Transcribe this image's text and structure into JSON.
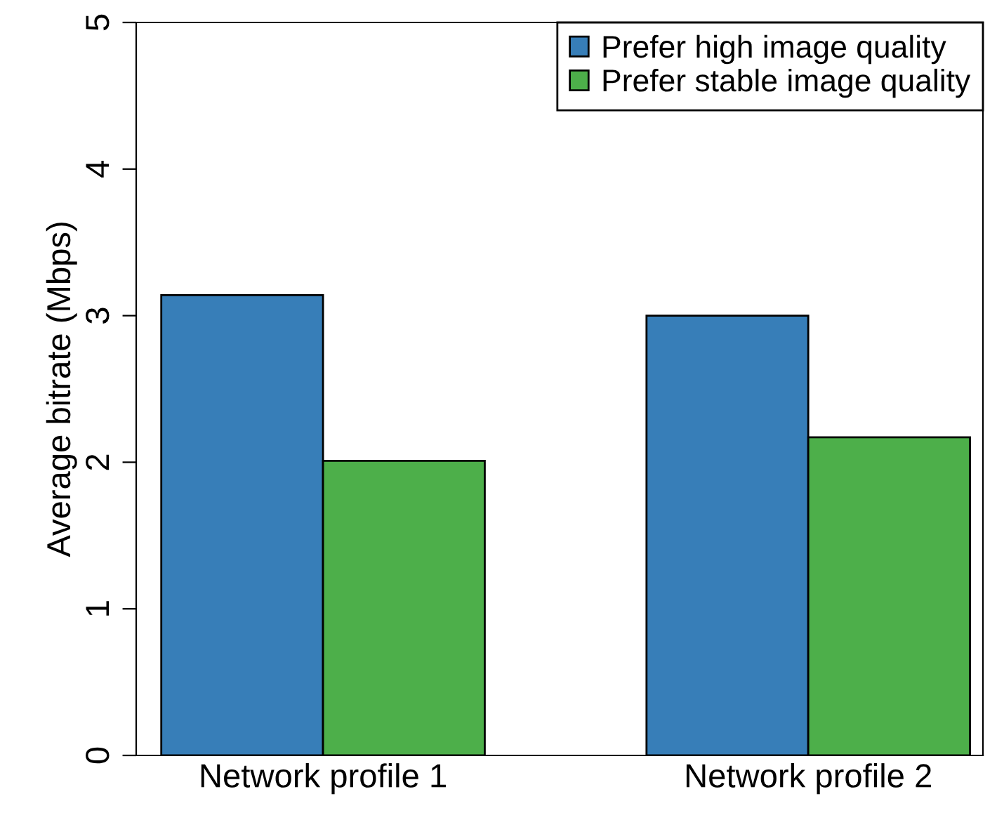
{
  "chart_data": {
    "type": "bar",
    "ylabel": "Average bitrate (Mbps)",
    "categories": [
      "Network profile 1",
      "Network profile 2"
    ],
    "series": [
      {
        "name": "Prefer high image quality",
        "color": "#377eb8",
        "values": [
          3.14,
          3.0
        ]
      },
      {
        "name": "Prefer stable image quality",
        "color": "#4daf4a",
        "values": [
          2.01,
          2.17
        ]
      }
    ],
    "ylim": [
      0,
      5
    ],
    "yticks": [
      0,
      1,
      2,
      3,
      4,
      5
    ],
    "legend": "top right",
    "grid": false
  }
}
